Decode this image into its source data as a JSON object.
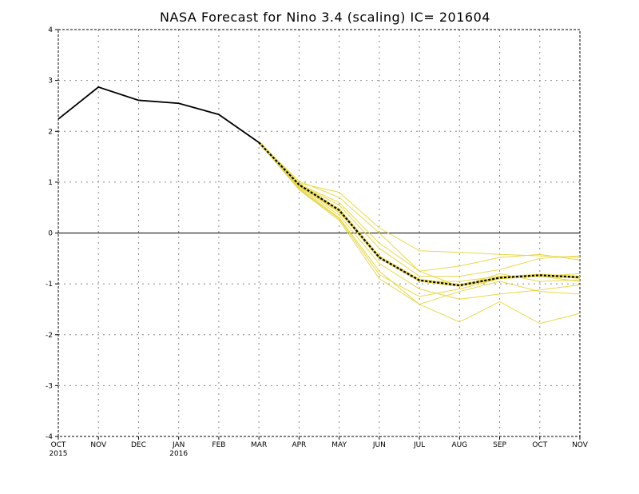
{
  "chart_data": {
    "type": "line",
    "title": "NASA Forecast for Nino 3.4 (scaling) IC= 201604",
    "x_ticks": [
      {
        "label": "OCT",
        "sub": "2015"
      },
      {
        "label": "NOV",
        "sub": ""
      },
      {
        "label": "DEC",
        "sub": ""
      },
      {
        "label": "JAN",
        "sub": "2016"
      },
      {
        "label": "FEB",
        "sub": ""
      },
      {
        "label": "MAR",
        "sub": ""
      },
      {
        "label": "APR",
        "sub": ""
      },
      {
        "label": "MAY",
        "sub": ""
      },
      {
        "label": "JUN",
        "sub": ""
      },
      {
        "label": "JUL",
        "sub": ""
      },
      {
        "label": "AUG",
        "sub": ""
      },
      {
        "label": "SEP",
        "sub": ""
      },
      {
        "label": "OCT",
        "sub": ""
      },
      {
        "label": "NOV",
        "sub": ""
      }
    ],
    "y_ticks": [
      "4",
      "3",
      "2",
      "1",
      "0",
      "-1",
      "-2",
      "-3",
      "-4"
    ],
    "ylim": [
      -4,
      4
    ],
    "grid": true,
    "zero_line": true,
    "colors": {
      "observed": "#000000",
      "members": "#e8d84a",
      "ensemble_mean": "#000000",
      "mean_highlight": "#e8d84a"
    },
    "observed": {
      "x": [
        "OCT 2015",
        "NOV",
        "DEC",
        "JAN 2016",
        "FEB",
        "MAR"
      ],
      "values": [
        2.24,
        2.87,
        2.61,
        2.55,
        2.33,
        1.78
      ]
    },
    "members": [
      {
        "values": [
          1.78,
          0.95,
          0.55,
          -0.3,
          -0.85,
          -0.85,
          -0.72,
          -0.5,
          -0.45
        ]
      },
      {
        "values": [
          1.78,
          0.88,
          0.3,
          -0.75,
          -1.4,
          -1.15,
          -0.95,
          -1.15,
          -1.2
        ]
      },
      {
        "values": [
          1.78,
          0.85,
          0.25,
          -0.9,
          -1.4,
          -1.75,
          -1.35,
          -1.78,
          -1.58
        ]
      },
      {
        "values": [
          1.78,
          0.98,
          0.8,
          0.1,
          -0.35,
          -0.38,
          -0.42,
          -0.45,
          -0.48
        ]
      },
      {
        "values": [
          1.78,
          1.02,
          0.7,
          0.0,
          -0.75,
          -0.65,
          -0.48,
          -0.42,
          -0.53
        ]
      },
      {
        "values": [
          1.78,
          0.9,
          0.35,
          -0.6,
          -1.1,
          -1.3,
          -1.2,
          -1.12,
          -1.02
        ]
      },
      {
        "values": [
          1.78,
          0.92,
          0.4,
          -0.45,
          -0.95,
          -0.95,
          -0.85,
          -0.85,
          -0.95
        ]
      },
      {
        "values": [
          1.78,
          0.96,
          0.6,
          -0.2,
          -0.75,
          -1.05,
          -0.8,
          -0.95,
          -0.92
        ]
      },
      {
        "values": [
          1.78,
          0.86,
          0.28,
          -0.82,
          -1.25,
          -1.1,
          -0.9,
          -0.85,
          -0.8
        ]
      }
    ],
    "ensemble_mean": {
      "x": [
        "MAR",
        "APR",
        "MAY",
        "JUN",
        "JUL",
        "AUG",
        "SEP",
        "OCT",
        "NOV"
      ],
      "values": [
        1.78,
        0.95,
        0.45,
        -0.48,
        -0.93,
        -1.03,
        -0.88,
        -0.83,
        -0.87
      ]
    }
  }
}
